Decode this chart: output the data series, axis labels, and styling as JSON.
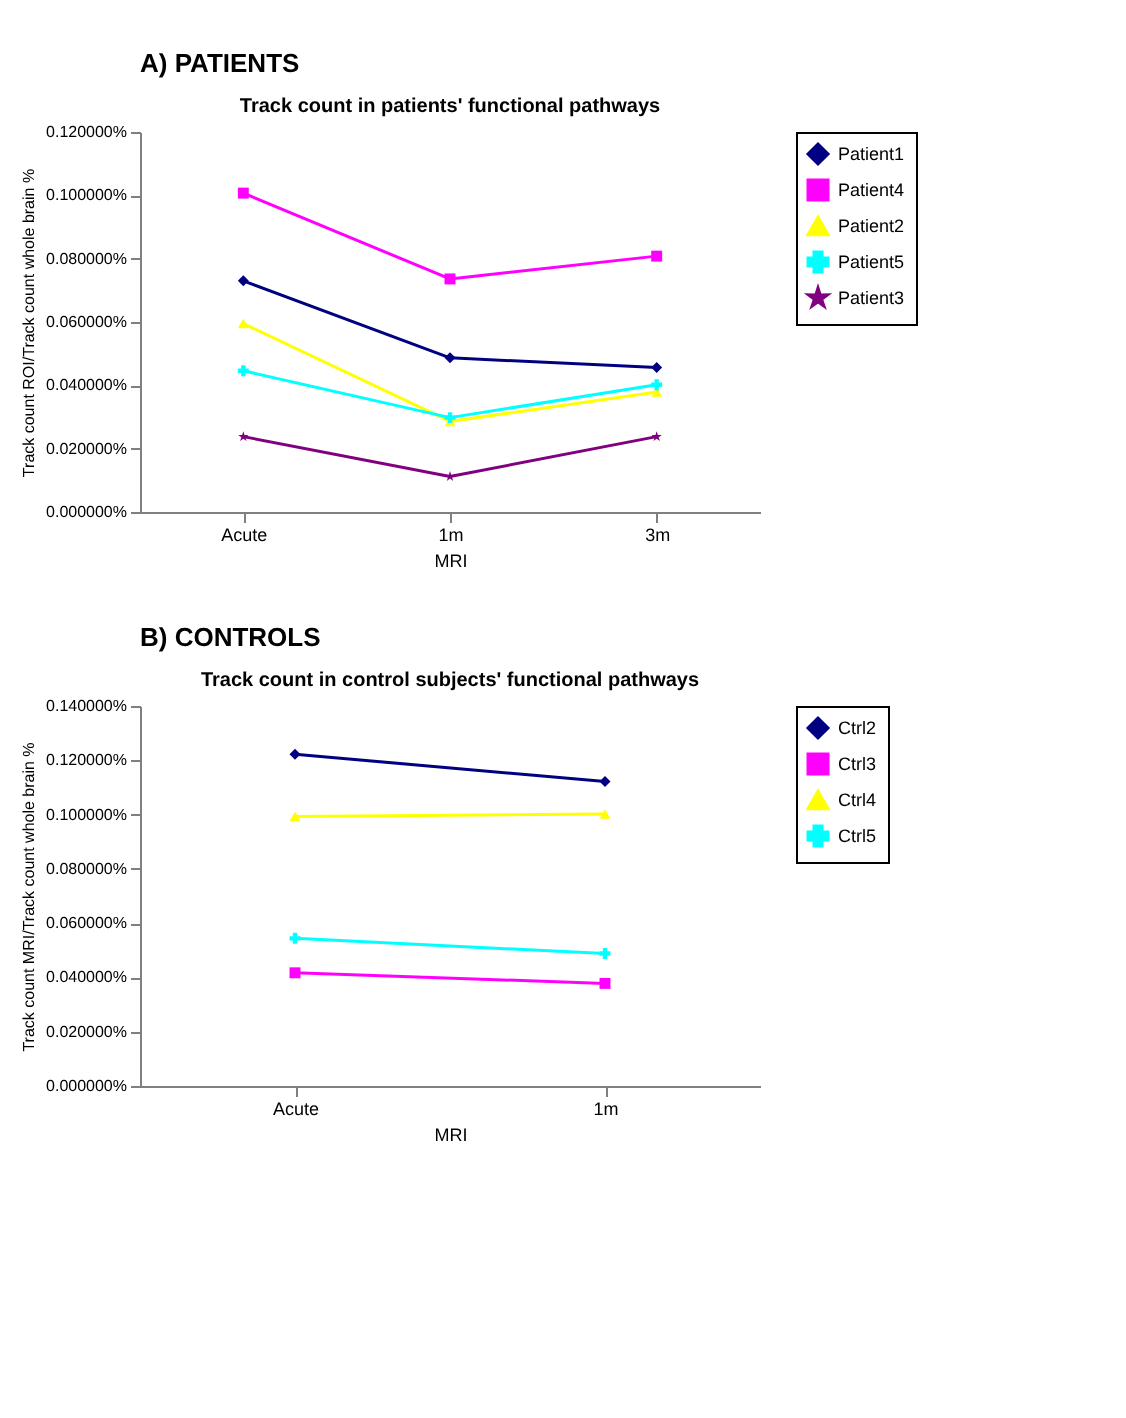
{
  "chart_data": [
    {
      "type": "line",
      "annotations": [
        "A) PATIENTS"
      ],
      "title": "Track count in patients' functional pathways",
      "xlabel": "MRI",
      "ylabel": "Track count ROI/Track count whole brain %",
      "categories": [
        "Acute",
        "1m",
        "3m"
      ],
      "series": [
        {
          "name": "Patient1",
          "color": "#000080",
          "marker": "diamond",
          "values": [
            0.073,
            0.0487,
            0.0456
          ]
        },
        {
          "name": "Patient4",
          "color": "#ff00ff",
          "marker": "square",
          "values": [
            0.1007,
            0.0736,
            0.0808
          ]
        },
        {
          "name": "Patient2",
          "color": "#ffff00",
          "marker": "triangle",
          "values": [
            0.0595,
            0.0286,
            0.0379
          ]
        },
        {
          "name": "Patient5",
          "color": "#00ffff",
          "marker": "cross",
          "values": [
            0.0446,
            0.0298,
            0.0402
          ]
        },
        {
          "name": "Patient3",
          "color": "#800080",
          "marker": "star",
          "values": [
            0.0238,
            0.0112,
            0.0238
          ]
        }
      ],
      "ylim": [
        0,
        0.12
      ],
      "yticks": [
        {
          "value": 0,
          "label": "0.000000%"
        },
        {
          "value": 0.02,
          "label": "0.020000%"
        },
        {
          "value": 0.04,
          "label": "0.040000%"
        },
        {
          "value": 0.06,
          "label": "0.060000%"
        },
        {
          "value": 0.08,
          "label": "0.080000%"
        },
        {
          "value": 0.1,
          "label": "0.100000%"
        },
        {
          "value": 0.12,
          "label": "0.120000%"
        }
      ],
      "legend": "right",
      "grid": false,
      "line_style": "solid"
    },
    {
      "type": "line",
      "annotations": [
        "B) CONTROLS"
      ],
      "title": "Track count in control subjects' functional pathways",
      "xlabel": "MRI",
      "ylabel": "Track count MRI/Track count whole brain %",
      "categories": [
        "Acute",
        "1m"
      ],
      "series": [
        {
          "name": "Ctrl2",
          "color": "#000080",
          "marker": "diamond",
          "values": [
            0.1222,
            0.1122
          ]
        },
        {
          "name": "Ctrl3",
          "color": "#ff00ff",
          "marker": "square",
          "values": [
            0.0417,
            0.0378
          ]
        },
        {
          "name": "Ctrl4",
          "color": "#ffff00",
          "marker": "triangle",
          "values": [
            0.0993,
            0.1002
          ]
        },
        {
          "name": "Ctrl5",
          "color": "#00ffff",
          "marker": "cross",
          "values": [
            0.0544,
            0.0488
          ]
        }
      ],
      "ylim": [
        0,
        0.14
      ],
      "yticks": [
        {
          "value": 0,
          "label": "0.000000%"
        },
        {
          "value": 0.02,
          "label": "0.020000%"
        },
        {
          "value": 0.04,
          "label": "0.040000%"
        },
        {
          "value": 0.06,
          "label": "0.060000%"
        },
        {
          "value": 0.08,
          "label": "0.080000%"
        },
        {
          "value": 0.1,
          "label": "0.100000%"
        },
        {
          "value": 0.12,
          "label": "0.120000%"
        },
        {
          "value": 0.14,
          "label": "0.140000%"
        }
      ],
      "legend": "right",
      "grid": false,
      "line_style": "solid"
    }
  ]
}
